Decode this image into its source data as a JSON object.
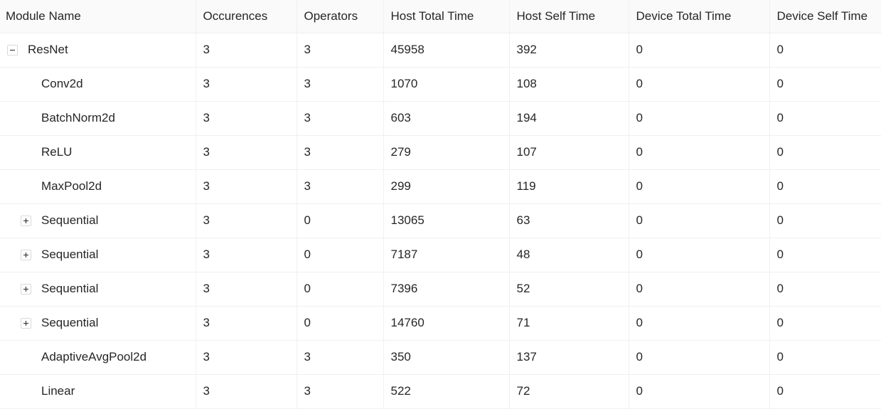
{
  "columns": [
    "Module Name",
    "Occurences",
    "Operators",
    "Host Total Time",
    "Host Self Time",
    "Device Total Time",
    "Device Self Time"
  ],
  "rows": [
    {
      "name": "ResNet",
      "level": 0,
      "toggle": "minus",
      "occurences": "3",
      "operators": "3",
      "host_total": "45958",
      "host_self": "392",
      "device_total": "0",
      "device_self": "0"
    },
    {
      "name": "Conv2d",
      "level": 1,
      "toggle": "none",
      "occurences": "3",
      "operators": "3",
      "host_total": "1070",
      "host_self": "108",
      "device_total": "0",
      "device_self": "0"
    },
    {
      "name": "BatchNorm2d",
      "level": 1,
      "toggle": "none",
      "occurences": "3",
      "operators": "3",
      "host_total": "603",
      "host_self": "194",
      "device_total": "0",
      "device_self": "0"
    },
    {
      "name": "ReLU",
      "level": 1,
      "toggle": "none",
      "occurences": "3",
      "operators": "3",
      "host_total": "279",
      "host_self": "107",
      "device_total": "0",
      "device_self": "0"
    },
    {
      "name": "MaxPool2d",
      "level": 1,
      "toggle": "none",
      "occurences": "3",
      "operators": "3",
      "host_total": "299",
      "host_self": "119",
      "device_total": "0",
      "device_self": "0"
    },
    {
      "name": "Sequential",
      "level": 1,
      "toggle": "plus",
      "occurences": "3",
      "operators": "0",
      "host_total": "13065",
      "host_self": "63",
      "device_total": "0",
      "device_self": "0"
    },
    {
      "name": "Sequential",
      "level": 1,
      "toggle": "plus",
      "occurences": "3",
      "operators": "0",
      "host_total": "7187",
      "host_self": "48",
      "device_total": "0",
      "device_self": "0"
    },
    {
      "name": "Sequential",
      "level": 1,
      "toggle": "plus",
      "occurences": "3",
      "operators": "0",
      "host_total": "7396",
      "host_self": "52",
      "device_total": "0",
      "device_self": "0"
    },
    {
      "name": "Sequential",
      "level": 1,
      "toggle": "plus",
      "occurences": "3",
      "operators": "0",
      "host_total": "14760",
      "host_self": "71",
      "device_total": "0",
      "device_self": "0"
    },
    {
      "name": "AdaptiveAvgPool2d",
      "level": 1,
      "toggle": "none",
      "occurences": "3",
      "operators": "3",
      "host_total": "350",
      "host_self": "137",
      "device_total": "0",
      "device_self": "0"
    },
    {
      "name": "Linear",
      "level": 1,
      "toggle": "none",
      "occurences": "3",
      "operators": "3",
      "host_total": "522",
      "host_self": "72",
      "device_total": "0",
      "device_self": "0"
    }
  ]
}
